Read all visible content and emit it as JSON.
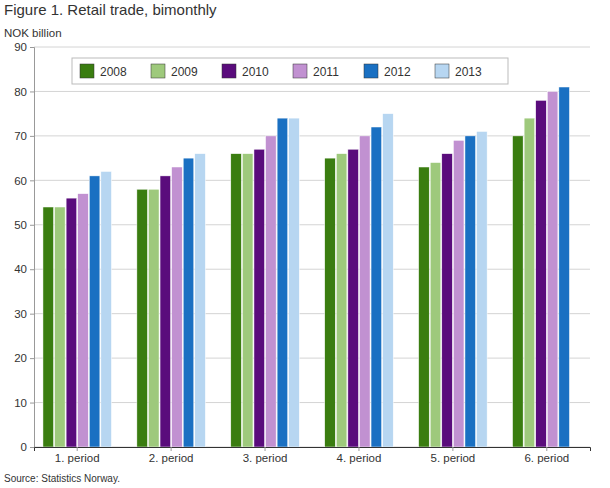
{
  "chart_data": {
    "type": "bar",
    "title": "Figure 1. Retail trade, bimonthly",
    "y_label": "NOK billion",
    "source": "Source: Statistics Norway.",
    "categories": [
      "1. period",
      "2. period",
      "3. period",
      "4. period",
      "5. period",
      "6. period"
    ],
    "series": [
      {
        "name": "2008",
        "color": "#3a7d10",
        "values": [
          54,
          58,
          66,
          65,
          63,
          70
        ]
      },
      {
        "name": "2009",
        "color": "#9ec97c",
        "values": [
          54,
          58,
          66,
          66,
          64,
          74
        ]
      },
      {
        "name": "2010",
        "color": "#5a0c7c",
        "values": [
          56,
          61,
          67,
          67,
          66,
          78
        ]
      },
      {
        "name": "2011",
        "color": "#c191d1",
        "values": [
          57,
          63,
          70,
          70,
          69,
          80
        ]
      },
      {
        "name": "2012",
        "color": "#1a70c2",
        "values": [
          61,
          65,
          74,
          72,
          70,
          81
        ]
      },
      {
        "name": "2013",
        "color": "#b7d6f1",
        "values": [
          62,
          66,
          74,
          75,
          71,
          null
        ]
      }
    ],
    "ylim": [
      0,
      90
    ],
    "yticks": [
      0,
      10,
      20,
      30,
      40,
      50,
      60,
      70,
      80,
      90
    ],
    "grid": true,
    "legend": "top"
  }
}
